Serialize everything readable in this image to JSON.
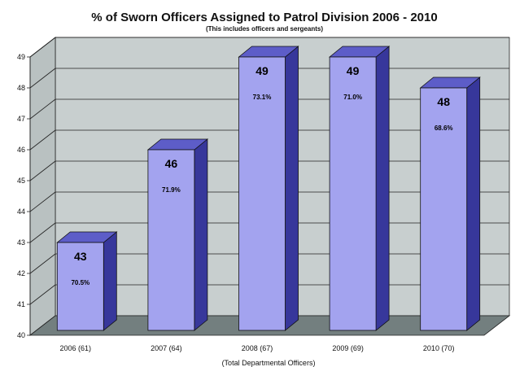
{
  "chart_data": {
    "type": "bar",
    "title": "% of Sworn Officers Assigned to Patrol Division 2006 - 2010",
    "subtitle": "(This includes officers and sergeants)",
    "xlabel": "(Total Departmental Officers)",
    "ylabel": "",
    "categories": [
      "2006 (61)",
      "2007 (64)",
      "2008 (67)",
      "2009 (69)",
      "2010 (70)"
    ],
    "values": [
      43,
      46,
      49,
      49,
      48
    ],
    "percent_labels": [
      "70.5%",
      "71.9%",
      "73.1%",
      "71.0%",
      "68.6%"
    ],
    "ylim": [
      40,
      49
    ],
    "yticks": [
      40,
      41,
      42,
      43,
      44,
      45,
      46,
      47,
      48,
      49
    ],
    "grid": true,
    "style": "3d-column",
    "colors": {
      "bar_front": "#a3a3ef",
      "bar_side": "#37379b",
      "bar_top": "#5d5dc8",
      "wall": "#c8cfcf",
      "floor": "#737f7f"
    }
  }
}
